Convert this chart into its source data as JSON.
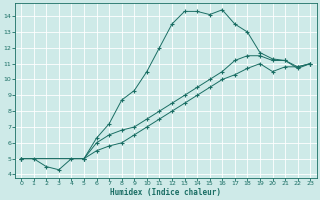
{
  "xlabel": "Humidex (Indice chaleur)",
  "bg_color": "#ceeae8",
  "line_color": "#1a6e64",
  "grid_color": "#ffffff",
  "xlim": [
    -0.5,
    23.5
  ],
  "ylim": [
    3.8,
    14.8
  ],
  "xticks": [
    0,
    1,
    2,
    3,
    4,
    5,
    6,
    7,
    8,
    9,
    10,
    11,
    12,
    13,
    14,
    15,
    16,
    17,
    18,
    19,
    20,
    21,
    22,
    23
  ],
  "yticks": [
    4,
    5,
    6,
    7,
    8,
    9,
    10,
    11,
    12,
    13,
    14
  ],
  "line1_x": [
    0,
    1,
    2,
    3,
    4,
    5,
    6,
    7,
    8,
    9,
    10,
    11,
    12,
    13,
    14,
    15,
    16,
    17,
    18,
    19,
    20,
    21,
    22,
    23
  ],
  "line1_y": [
    5.0,
    5.0,
    4.5,
    4.3,
    5.0,
    5.0,
    6.3,
    7.2,
    8.7,
    9.3,
    10.5,
    12.0,
    13.5,
    14.3,
    14.3,
    14.1,
    14.4,
    13.5,
    13.0,
    11.7,
    11.3,
    11.2,
    10.7,
    11.0
  ],
  "line2_x": [
    0,
    5,
    6,
    7,
    8,
    9,
    10,
    11,
    12,
    13,
    14,
    15,
    16,
    17,
    18,
    19,
    20,
    21,
    22,
    23
  ],
  "line2_y": [
    5.0,
    5.0,
    6.0,
    6.5,
    6.8,
    7.0,
    7.5,
    8.0,
    8.5,
    9.0,
    9.5,
    10.0,
    10.5,
    11.2,
    11.5,
    11.5,
    11.2,
    11.2,
    10.8,
    11.0
  ],
  "line3_x": [
    0,
    5,
    6,
    7,
    8,
    9,
    10,
    11,
    12,
    13,
    14,
    15,
    16,
    17,
    18,
    19,
    20,
    21,
    22,
    23
  ],
  "line3_y": [
    5.0,
    5.0,
    5.5,
    5.8,
    6.0,
    6.5,
    7.0,
    7.5,
    8.0,
    8.5,
    9.0,
    9.5,
    10.0,
    10.3,
    10.7,
    11.0,
    10.5,
    10.8,
    10.8,
    11.0
  ]
}
